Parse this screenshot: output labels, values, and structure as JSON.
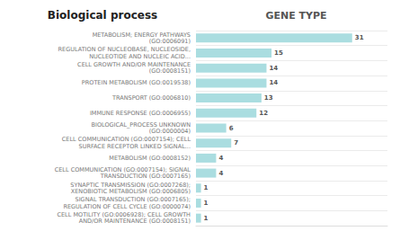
{
  "chart_data": {
    "type": "bar",
    "orientation": "horizontal",
    "title": "Biological process",
    "subtitle": "GENE TYPE",
    "categories": [
      "METABOLISM; ENERGY PATHWAYS\n(GO:0006091)",
      "REGULATION OF NUCLEOBASE, NUCLEOSIDE,\nNUCLEOTIDE AND NUCLEIC ACID...",
      "CELL GROWTH AND/OR MAINTENANCE\n(GO:0008151)",
      "PROTEIN METABOLISM (GO:0019538)",
      "TRANSPORT (GO:0006810)",
      "IMMUNE RESPONSE (GO:0006955)",
      "BIOLOGICAL_PROCESS UNKNOWN\n(GO:0000004)",
      "CELL COMMUNICATION (GO:0007154); CELL\nSURFACE RECEPTOR LINKED SIGNAL...",
      "METABOLISM (GO:0008152)",
      "CELL COMMUNICATION (GO:0007154); SIGNAL\nTRANSDUCTION (GO:0007165)",
      "SYNAPTIC TRANSMISSION (GO:0007268);\nXENOBIOTIC METABOLISM (GO:0006805)",
      "SIGNAL TRANSDUCTION (GO:0007165);\nREGULATION OF CELL CYCLE (GO:0000074)",
      "CELL MOTILITY (GO:0006928); CELL GROWTH\nAND/OR MAINTENANCE (GO:0008151)"
    ],
    "values": [
      31,
      15,
      14,
      14,
      13,
      12,
      6,
      7,
      4,
      4,
      1,
      1,
      1
    ],
    "color": "#aadde0",
    "xlim": [
      0,
      38
    ],
    "grid": true,
    "data_labels": true,
    "tick_labels": "y"
  }
}
